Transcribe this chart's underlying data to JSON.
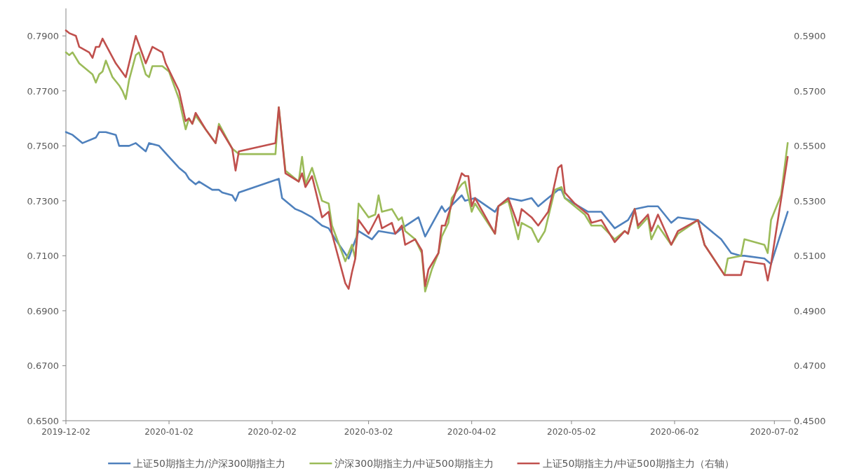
{
  "chart_data": {
    "type": "line",
    "xlim": [
      "2019-12-02",
      "2020-07-07"
    ],
    "xticks": [
      "2019-12-02",
      "2020-01-02",
      "2020-02-02",
      "2020-03-02",
      "2020-04-02",
      "2020-05-02",
      "2020-06-02",
      "2020-07-02"
    ],
    "ylim": [
      0.65,
      0.8
    ],
    "yticks": [
      {
        "value": 0.65,
        "label": "0.6500"
      },
      {
        "value": 0.67,
        "label": "0.6700"
      },
      {
        "value": 0.69,
        "label": "0.6900"
      },
      {
        "value": 0.71,
        "label": "0.7100"
      },
      {
        "value": 0.73,
        "label": "0.7300"
      },
      {
        "value": 0.75,
        "label": "0.7500"
      },
      {
        "value": 0.77,
        "label": "0.7700"
      },
      {
        "value": 0.79,
        "label": "0.7900"
      }
    ],
    "y2lim": [
      0.45,
      0.6
    ],
    "y2ticks": [
      {
        "value": 0.45,
        "label": "0.4500"
      },
      {
        "value": 0.47,
        "label": "0.4700"
      },
      {
        "value": 0.49,
        "label": "0.4900"
      },
      {
        "value": 0.51,
        "label": "0.5100"
      },
      {
        "value": 0.53,
        "label": "0.5300"
      },
      {
        "value": 0.55,
        "label": "0.5500"
      },
      {
        "value": 0.57,
        "label": "0.5700"
      },
      {
        "value": 0.59,
        "label": "0.5900"
      }
    ],
    "legend": "bottom",
    "series": [
      {
        "name": "上证50期指主力/沪深300期指主力",
        "color": "#4f81bd",
        "x": [
          "2019-12-02",
          "2019-12-04",
          "2019-12-07",
          "2019-12-11",
          "2019-12-12",
          "2019-12-14",
          "2019-12-17",
          "2019-12-18",
          "2019-12-21",
          "2019-12-23",
          "2019-12-26",
          "2019-12-27",
          "2019-12-30",
          "2020-01-02",
          "2020-01-05",
          "2020-01-07",
          "2020-01-08",
          "2020-01-10",
          "2020-01-11",
          "2020-01-15",
          "2020-01-17",
          "2020-01-18",
          "2020-01-21",
          "2020-01-22",
          "2020-01-23",
          "2020-02-04",
          "2020-02-05",
          "2020-02-09",
          "2020-02-11",
          "2020-02-14",
          "2020-02-17",
          "2020-02-19",
          "2020-02-21",
          "2020-02-25",
          "2020-02-28",
          "2020-03-03",
          "2020-03-05",
          "2020-03-10",
          "2020-03-12",
          "2020-03-17",
          "2020-03-19",
          "2020-03-24",
          "2020-03-25",
          "2020-03-30",
          "2020-03-31",
          "2020-04-03",
          "2020-04-09",
          "2020-04-10",
          "2020-04-13",
          "2020-04-17",
          "2020-04-20",
          "2020-04-22",
          "2020-04-24",
          "2020-04-28",
          "2020-04-29",
          "2020-04-30",
          "2020-05-07",
          "2020-05-11",
          "2020-05-15",
          "2020-05-19",
          "2020-05-21",
          "2020-05-25",
          "2020-05-28",
          "2020-06-01",
          "2020-06-03",
          "2020-06-09",
          "2020-06-16",
          "2020-06-19",
          "2020-06-22",
          "2020-06-23",
          "2020-06-29",
          "2020-07-01",
          "2020-07-06"
        ],
        "values": [
          0.755,
          0.754,
          0.751,
          0.753,
          0.755,
          0.755,
          0.754,
          0.75,
          0.75,
          0.751,
          0.748,
          0.751,
          0.75,
          0.746,
          0.742,
          0.74,
          0.738,
          0.736,
          0.737,
          0.734,
          0.734,
          0.733,
          0.732,
          0.73,
          0.733,
          0.738,
          0.731,
          0.727,
          0.726,
          0.724,
          0.721,
          0.72,
          0.716,
          0.709,
          0.719,
          0.716,
          0.719,
          0.718,
          0.72,
          0.724,
          0.717,
          0.728,
          0.726,
          0.732,
          0.73,
          0.731,
          0.726,
          0.728,
          0.731,
          0.73,
          0.731,
          0.728,
          0.73,
          0.734,
          0.734,
          0.731,
          0.726,
          0.726,
          0.72,
          0.723,
          0.727,
          0.728,
          0.728,
          0.722,
          0.724,
          0.723,
          0.716,
          0.711,
          0.71,
          0.71,
          0.709,
          0.707,
          0.726
        ]
      },
      {
        "name": "沪深300期指主力/中证500期指主力",
        "color": "#9bbb59",
        "x": [
          "2019-12-02",
          "2019-12-03",
          "2019-12-04",
          "2019-12-06",
          "2019-12-10",
          "2019-12-11",
          "2019-12-12",
          "2019-12-13",
          "2019-12-14",
          "2019-12-16",
          "2019-12-18",
          "2019-12-19",
          "2019-12-20",
          "2019-12-21",
          "2019-12-23",
          "2019-12-24",
          "2019-12-26",
          "2019-12-27",
          "2019-12-28",
          "2019-12-31",
          "2020-01-02",
          "2020-01-05",
          "2020-01-07",
          "2020-01-08",
          "2020-01-09",
          "2020-01-10",
          "2020-01-13",
          "2020-01-16",
          "2020-01-17",
          "2020-01-21",
          "2020-01-23",
          "2020-02-03",
          "2020-02-04",
          "2020-02-06",
          "2020-02-10",
          "2020-02-11",
          "2020-02-12",
          "2020-02-14",
          "2020-02-17",
          "2020-02-19",
          "2020-02-20",
          "2020-02-24",
          "2020-02-26",
          "2020-02-27",
          "2020-02-28",
          "2020-03-02",
          "2020-03-04",
          "2020-03-05",
          "2020-03-06",
          "2020-03-09",
          "2020-03-11",
          "2020-03-12",
          "2020-03-13",
          "2020-03-16",
          "2020-03-18",
          "2020-03-19",
          "2020-03-21",
          "2020-03-23",
          "2020-03-24",
          "2020-03-26",
          "2020-03-27",
          "2020-03-30",
          "2020-03-31",
          "2020-04-02",
          "2020-04-03",
          "2020-04-09",
          "2020-04-10",
          "2020-04-13",
          "2020-04-16",
          "2020-04-17",
          "2020-04-20",
          "2020-04-22",
          "2020-04-24",
          "2020-04-27",
          "2020-04-29",
          "2020-04-30",
          "2020-05-03",
          "2020-05-06",
          "2020-05-08",
          "2020-05-11",
          "2020-05-15",
          "2020-05-18",
          "2020-05-19",
          "2020-05-21",
          "2020-05-22",
          "2020-05-25",
          "2020-05-26",
          "2020-05-28",
          "2020-06-01",
          "2020-06-03",
          "2020-06-09",
          "2020-06-11",
          "2020-06-17",
          "2020-06-18",
          "2020-06-22",
          "2020-06-23",
          "2020-06-29",
          "2020-06-30",
          "2020-07-01",
          "2020-07-04",
          "2020-07-06"
        ],
        "values": [
          0.784,
          0.783,
          0.784,
          0.78,
          0.776,
          0.773,
          0.776,
          0.777,
          0.781,
          0.775,
          0.772,
          0.77,
          0.767,
          0.774,
          0.783,
          0.784,
          0.776,
          0.775,
          0.779,
          0.779,
          0.777,
          0.767,
          0.756,
          0.76,
          0.758,
          0.761,
          0.756,
          0.751,
          0.758,
          0.749,
          0.747,
          0.747,
          0.764,
          0.741,
          0.737,
          0.746,
          0.736,
          0.742,
          0.73,
          0.729,
          0.721,
          0.708,
          0.714,
          0.709,
          0.729,
          0.724,
          0.725,
          0.732,
          0.726,
          0.727,
          0.723,
          0.724,
          0.719,
          0.716,
          0.711,
          0.697,
          0.705,
          0.711,
          0.717,
          0.722,
          0.731,
          0.736,
          0.737,
          0.726,
          0.729,
          0.718,
          0.728,
          0.73,
          0.716,
          0.722,
          0.72,
          0.715,
          0.719,
          0.734,
          0.735,
          0.731,
          0.728,
          0.725,
          0.721,
          0.721,
          0.716,
          0.719,
          0.718,
          0.727,
          0.72,
          0.724,
          0.716,
          0.721,
          0.714,
          0.718,
          0.723,
          0.714,
          0.703,
          0.709,
          0.71,
          0.716,
          0.714,
          0.711,
          0.723,
          0.732,
          0.751
        ]
      },
      {
        "name": "上证50期指主力/中证500期指主力（右轴）",
        "color": "#c0504d",
        "axis": "y2",
        "x": [
          "2019-12-02",
          "2019-12-03",
          "2019-12-05",
          "2019-12-06",
          "2019-12-09",
          "2019-12-10",
          "2019-12-11",
          "2019-12-12",
          "2019-12-13",
          "2019-12-17",
          "2019-12-20",
          "2019-12-23",
          "2019-12-26",
          "2019-12-28",
          "2019-12-31",
          "2020-01-01",
          "2020-01-05",
          "2020-01-07",
          "2020-01-08",
          "2020-01-09",
          "2020-01-10",
          "2020-01-13",
          "2020-01-16",
          "2020-01-17",
          "2020-01-21",
          "2020-01-22",
          "2020-01-23",
          "2020-02-03",
          "2020-02-04",
          "2020-02-06",
          "2020-02-10",
          "2020-02-11",
          "2020-02-12",
          "2020-02-14",
          "2020-02-17",
          "2020-02-19",
          "2020-02-20",
          "2020-02-24",
          "2020-02-25",
          "2020-02-26",
          "2020-02-27",
          "2020-02-28",
          "2020-03-02",
          "2020-03-05",
          "2020-03-06",
          "2020-03-09",
          "2020-03-10",
          "2020-03-12",
          "2020-03-13",
          "2020-03-16",
          "2020-03-18",
          "2020-03-19",
          "2020-03-20",
          "2020-03-23",
          "2020-03-24",
          "2020-03-25",
          "2020-03-26",
          "2020-03-30",
          "2020-03-31",
          "2020-04-01",
          "2020-04-02",
          "2020-04-03",
          "2020-04-09",
          "2020-04-10",
          "2020-04-13",
          "2020-04-16",
          "2020-04-17",
          "2020-04-20",
          "2020-04-22",
          "2020-04-25",
          "2020-04-26",
          "2020-04-28",
          "2020-04-29",
          "2020-04-30",
          "2020-05-03",
          "2020-05-07",
          "2020-05-08",
          "2020-05-11",
          "2020-05-15",
          "2020-05-18",
          "2020-05-19",
          "2020-05-21",
          "2020-05-22",
          "2020-05-25",
          "2020-05-26",
          "2020-05-28",
          "2020-06-01",
          "2020-06-03",
          "2020-06-09",
          "2020-06-11",
          "2020-06-17",
          "2020-06-22",
          "2020-06-23",
          "2020-06-29",
          "2020-06-30",
          "2020-07-01",
          "2020-07-06"
        ],
        "values": [
          0.592,
          0.591,
          0.59,
          0.586,
          0.584,
          0.582,
          0.586,
          0.586,
          0.589,
          0.58,
          0.575,
          0.59,
          0.58,
          0.586,
          0.584,
          0.58,
          0.57,
          0.559,
          0.56,
          0.558,
          0.562,
          0.556,
          0.551,
          0.557,
          0.549,
          0.541,
          0.548,
          0.551,
          0.564,
          0.54,
          0.537,
          0.54,
          0.535,
          0.539,
          0.524,
          0.526,
          0.518,
          0.5,
          0.498,
          0.504,
          0.509,
          0.523,
          0.518,
          0.525,
          0.52,
          0.522,
          0.518,
          0.521,
          0.514,
          0.516,
          0.512,
          0.499,
          0.505,
          0.511,
          0.521,
          0.521,
          0.525,
          0.54,
          0.539,
          0.539,
          0.528,
          0.531,
          0.518,
          0.528,
          0.531,
          0.521,
          0.527,
          0.524,
          0.521,
          0.526,
          0.531,
          0.542,
          0.543,
          0.533,
          0.529,
          0.525,
          0.522,
          0.523,
          0.515,
          0.519,
          0.518,
          0.527,
          0.521,
          0.525,
          0.519,
          0.525,
          0.514,
          0.519,
          0.523,
          0.514,
          0.503,
          0.503,
          0.508,
          0.507,
          0.501,
          0.507,
          0.546
        ]
      }
    ]
  }
}
